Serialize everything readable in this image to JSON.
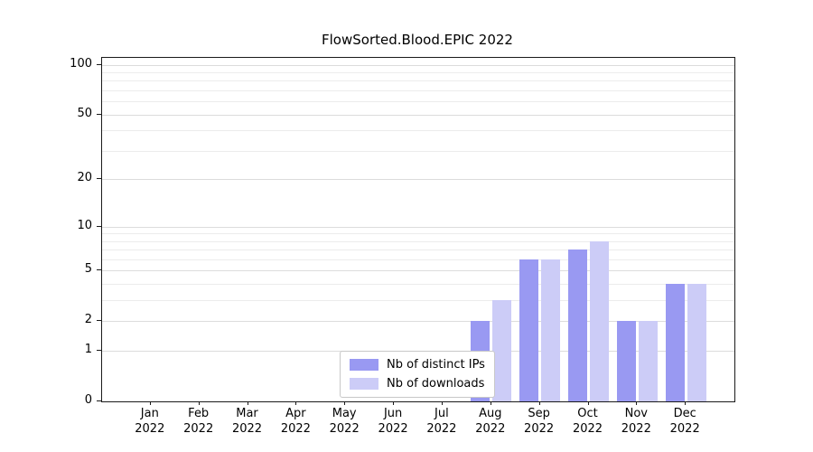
{
  "chart_data": {
    "type": "bar",
    "title": "FlowSorted.Blood.EPIC 2022",
    "categories": [
      "Jan 2022",
      "Feb 2022",
      "Mar 2022",
      "Apr 2022",
      "May 2022",
      "Jun 2022",
      "Jul 2022",
      "Aug 2022",
      "Sep 2022",
      "Oct 2022",
      "Nov 2022",
      "Dec 2022"
    ],
    "month_labels": [
      "Jan",
      "Feb",
      "Mar",
      "Apr",
      "May",
      "Jun",
      "Jul",
      "Aug",
      "Sep",
      "Oct",
      "Nov",
      "Dec"
    ],
    "year_label": "2022",
    "series": [
      {
        "name": "Nb of distinct IPs",
        "color": "#9999f2",
        "values": [
          0,
          0,
          0,
          0,
          0,
          0,
          0,
          2,
          6,
          7,
          2,
          4
        ]
      },
      {
        "name": "Nb of downloads",
        "color": "#ccccf7",
        "values": [
          0,
          0,
          0,
          0,
          0,
          0,
          0,
          3,
          6,
          8,
          2,
          4
        ]
      }
    ],
    "yscale": "log1p",
    "ylim": [
      0,
      110
    ],
    "yticks": [
      0,
      1,
      2,
      5,
      10,
      20,
      50,
      100
    ],
    "minor_gridlines": [
      1,
      2,
      3,
      4,
      5,
      6,
      7,
      8,
      9,
      10,
      20,
      30,
      40,
      50,
      60,
      70,
      80,
      90,
      100
    ],
    "grid": true,
    "legend_position": "inside-bottom-center",
    "xlabel": "",
    "ylabel": ""
  }
}
